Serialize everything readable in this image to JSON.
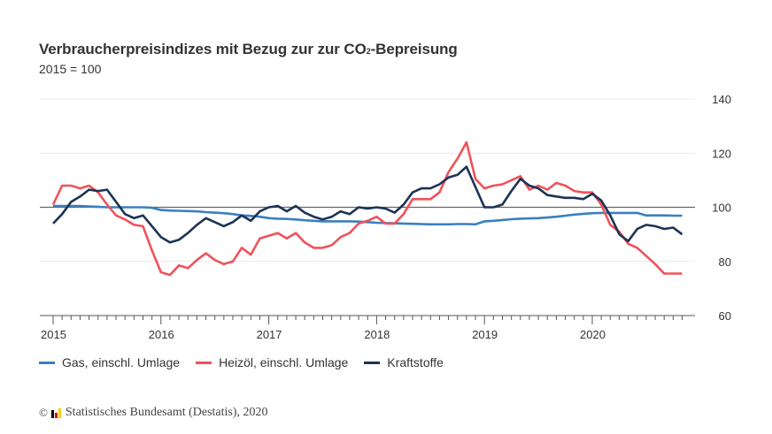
{
  "header": {
    "title_main": "Verbraucherpreisindizes mit Bezug zur zur CO",
    "title_sub": "2",
    "title_end": "-Bepreisung",
    "subtitle": "2015 = 100"
  },
  "source": {
    "copyright_symbol": "©",
    "text": "Statistisches Bundesamt (Destatis), 2020",
    "logo_colors": [
      "#000000",
      "#dd0000",
      "#ffcc00"
    ]
  },
  "colors": {
    "gas": "#3a7fc1",
    "heizoel": "#f0525a",
    "kraftstoffe": "#1b3355",
    "baseline": "#666666",
    "grid": "#ebebeb",
    "axis": "#555555"
  },
  "chart_data": {
    "type": "line",
    "title": "Verbraucherpreisindizes mit Bezug zur zur CO₂-Bepreisung",
    "subtitle": "2015 = 100",
    "xlabel": "",
    "ylabel": "",
    "x_start": "2015-01",
    "x_end": "2020-11",
    "x_frequency": "monthly",
    "x_tick_labels": [
      "2015",
      "2016",
      "2017",
      "2018",
      "2019",
      "2020"
    ],
    "ylim": [
      60,
      140
    ],
    "y_ticks": [
      60,
      80,
      100,
      120,
      140
    ],
    "y_axis_side": "right",
    "reference_line": 100,
    "grid": true,
    "legend_position": "bottom-left",
    "series": [
      {
        "name": "Gas, einschl. Umlage",
        "color_key": "gas",
        "values": [
          100.5,
          100.5,
          100.5,
          100.5,
          100.3,
          100.2,
          100,
          100,
          100,
          100,
          100,
          99.8,
          99,
          98.8,
          98.7,
          98.6,
          98.5,
          98.2,
          98,
          97.8,
          97.5,
          97,
          96.8,
          96.5,
          96,
          95.8,
          95.7,
          95.5,
          95.2,
          95,
          94.8,
          94.8,
          94.8,
          94.8,
          94.7,
          94.5,
          94.3,
          94.2,
          94.1,
          94,
          93.9,
          93.8,
          93.7,
          93.7,
          93.7,
          93.8,
          93.8,
          93.7,
          94.8,
          95,
          95.3,
          95.6,
          95.8,
          95.9,
          96,
          96.2,
          96.5,
          96.9,
          97.3,
          97.6,
          97.8,
          97.9,
          97.9,
          97.9,
          97.9,
          97.9,
          97,
          97,
          97,
          96.9,
          96.9
        ]
      },
      {
        "name": "Heizöl, einschl. Umlage",
        "color_key": "heizoel",
        "values": [
          101,
          108,
          108,
          107,
          108,
          105.5,
          101,
          97,
          95.5,
          93.5,
          93,
          84,
          76,
          75,
          78.5,
          77.5,
          80.5,
          83,
          80.5,
          79,
          80,
          85,
          82.5,
          88.5,
          89.5,
          90.5,
          88.5,
          90.5,
          87,
          85,
          85,
          86,
          89,
          90.5,
          94,
          95,
          96.5,
          94,
          94,
          97.5,
          103,
          103,
          103,
          105.5,
          113,
          118,
          124,
          110.5,
          107,
          108,
          108.5,
          110,
          111.5,
          106.5,
          108,
          106.5,
          109,
          108,
          106,
          105.5,
          105.5,
          101,
          93.5,
          91,
          86.5,
          85,
          82,
          79,
          75.5,
          75.5,
          75.5
        ]
      },
      {
        "name": "Kraftstoffe",
        "color_key": "kraftstoffe",
        "values": [
          94,
          97.5,
          102,
          104,
          106.5,
          106,
          106.5,
          102,
          97.5,
          96,
          97,
          93,
          89,
          87,
          88,
          90.5,
          93.5,
          96,
          94.5,
          93,
          94.5,
          97,
          95,
          98.5,
          100,
          100.5,
          98.5,
          100.5,
          98,
          96.5,
          95.5,
          96.5,
          98.5,
          97.5,
          100,
          99.5,
          100,
          99.5,
          98,
          101,
          105.5,
          107,
          107,
          108.5,
          111,
          112,
          115,
          107.5,
          100,
          100,
          101,
          106,
          110.5,
          108,
          107,
          104.5,
          104,
          103.5,
          103.5,
          103,
          105,
          102.5,
          97,
          90,
          87.5,
          92,
          93.5,
          93,
          92,
          92.5,
          90
        ]
      }
    ]
  }
}
